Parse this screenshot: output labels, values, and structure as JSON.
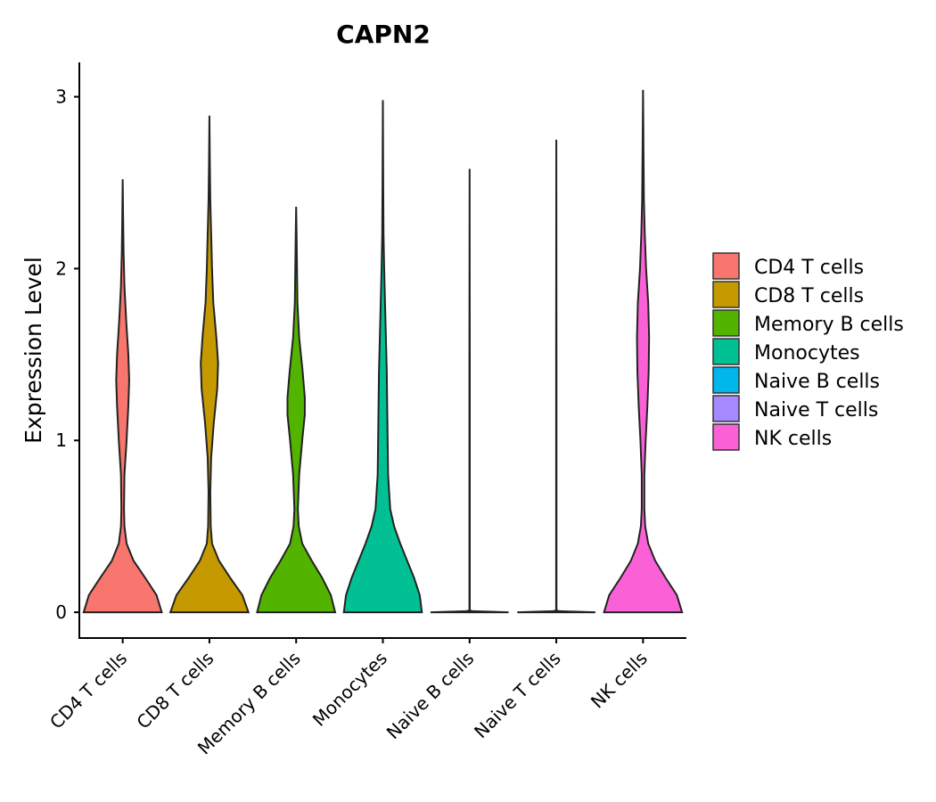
{
  "chart_data": {
    "type": "violin",
    "title": "CAPN2",
    "xlabel": "",
    "ylabel": "Expression Level",
    "ylim": [
      -0.15,
      3.2
    ],
    "yticks": [
      0,
      1,
      2,
      3
    ],
    "categories": [
      "CD4 T cells",
      "CD8 T cells",
      "Memory B cells",
      "Monocytes",
      "Naive B cells",
      "Naive T cells",
      "NK cells"
    ],
    "colors": [
      "#F8766D",
      "#C49A00",
      "#53B400",
      "#00C094",
      "#00B6EB",
      "#A58AFF",
      "#FB61D7"
    ],
    "legend": {
      "position": "right",
      "entries": [
        "CD4 T cells",
        "CD8 T cells",
        "Memory B cells",
        "Monocytes",
        "Naive B cells",
        "Naive T cells",
        "NK cells"
      ]
    },
    "series": [
      {
        "name": "CD4 T cells",
        "min": 0,
        "max": 2.52,
        "density": [
          [
            0,
            0.9
          ],
          [
            0.1,
            0.78
          ],
          [
            0.2,
            0.52
          ],
          [
            0.3,
            0.25
          ],
          [
            0.4,
            0.09
          ],
          [
            0.5,
            0.04
          ],
          [
            0.6,
            0.03
          ],
          [
            0.8,
            0.04
          ],
          [
            1.0,
            0.09
          ],
          [
            1.2,
            0.13
          ],
          [
            1.35,
            0.15
          ],
          [
            1.5,
            0.13
          ],
          [
            1.7,
            0.08
          ],
          [
            1.9,
            0.04
          ],
          [
            2.1,
            0.02
          ],
          [
            2.3,
            0.01
          ],
          [
            2.52,
            0
          ]
        ]
      },
      {
        "name": "CD8 T cells",
        "min": 0,
        "max": 2.89,
        "density": [
          [
            0,
            0.9
          ],
          [
            0.1,
            0.76
          ],
          [
            0.2,
            0.48
          ],
          [
            0.3,
            0.22
          ],
          [
            0.4,
            0.06
          ],
          [
            0.5,
            0.03
          ],
          [
            0.7,
            0.02
          ],
          [
            0.9,
            0.04
          ],
          [
            1.1,
            0.1
          ],
          [
            1.3,
            0.18
          ],
          [
            1.45,
            0.2
          ],
          [
            1.6,
            0.16
          ],
          [
            1.8,
            0.09
          ],
          [
            2.0,
            0.06
          ],
          [
            2.2,
            0.04
          ],
          [
            2.4,
            0.02
          ],
          [
            2.6,
            0.01
          ],
          [
            2.89,
            0
          ]
        ]
      },
      {
        "name": "Memory B cells",
        "min": 0,
        "max": 2.36,
        "density": [
          [
            0,
            0.9
          ],
          [
            0.1,
            0.8
          ],
          [
            0.2,
            0.6
          ],
          [
            0.3,
            0.36
          ],
          [
            0.4,
            0.14
          ],
          [
            0.5,
            0.06
          ],
          [
            0.6,
            0.04
          ],
          [
            0.8,
            0.07
          ],
          [
            1.0,
            0.14
          ],
          [
            1.15,
            0.2
          ],
          [
            1.25,
            0.2
          ],
          [
            1.4,
            0.15
          ],
          [
            1.6,
            0.07
          ],
          [
            1.8,
            0.03
          ],
          [
            2.0,
            0.02
          ],
          [
            2.2,
            0.01
          ],
          [
            2.36,
            0
          ]
        ]
      },
      {
        "name": "Monocytes",
        "min": 0,
        "max": 2.98,
        "density": [
          [
            0,
            0.9
          ],
          [
            0.1,
            0.85
          ],
          [
            0.2,
            0.72
          ],
          [
            0.3,
            0.56
          ],
          [
            0.4,
            0.4
          ],
          [
            0.5,
            0.26
          ],
          [
            0.6,
            0.17
          ],
          [
            0.8,
            0.12
          ],
          [
            1.0,
            0.11
          ],
          [
            1.2,
            0.1
          ],
          [
            1.4,
            0.09
          ],
          [
            1.6,
            0.07
          ],
          [
            1.8,
            0.05
          ],
          [
            2.0,
            0.03
          ],
          [
            2.2,
            0.015
          ],
          [
            2.5,
            0.008
          ],
          [
            2.98,
            0
          ]
        ]
      },
      {
        "name": "Naive B cells",
        "min": 0,
        "max": 2.58,
        "density": [
          [
            0,
            0.9
          ],
          [
            0.003,
            0.5
          ],
          [
            0.006,
            0.08
          ],
          [
            0.01,
            0.004
          ],
          [
            0.5,
            0.004
          ],
          [
            1.5,
            0.004
          ],
          [
            2.58,
            0
          ]
        ]
      },
      {
        "name": "Naive T cells",
        "min": 0,
        "max": 2.75,
        "density": [
          [
            0,
            0.9
          ],
          [
            0.003,
            0.5
          ],
          [
            0.006,
            0.08
          ],
          [
            0.01,
            0.004
          ],
          [
            0.5,
            0.004
          ],
          [
            1.5,
            0.004
          ],
          [
            2.75,
            0
          ]
        ]
      },
      {
        "name": "NK cells",
        "min": 0,
        "max": 3.04,
        "density": [
          [
            0,
            0.9
          ],
          [
            0.1,
            0.78
          ],
          [
            0.2,
            0.52
          ],
          [
            0.3,
            0.28
          ],
          [
            0.4,
            0.12
          ],
          [
            0.5,
            0.05
          ],
          [
            0.6,
            0.03
          ],
          [
            0.8,
            0.03
          ],
          [
            1.0,
            0.06
          ],
          [
            1.2,
            0.1
          ],
          [
            1.4,
            0.13
          ],
          [
            1.6,
            0.14
          ],
          [
            1.8,
            0.12
          ],
          [
            2.0,
            0.07
          ],
          [
            2.2,
            0.04
          ],
          [
            2.4,
            0.02
          ],
          [
            2.7,
            0.01
          ],
          [
            3.04,
            0
          ]
        ]
      }
    ]
  }
}
